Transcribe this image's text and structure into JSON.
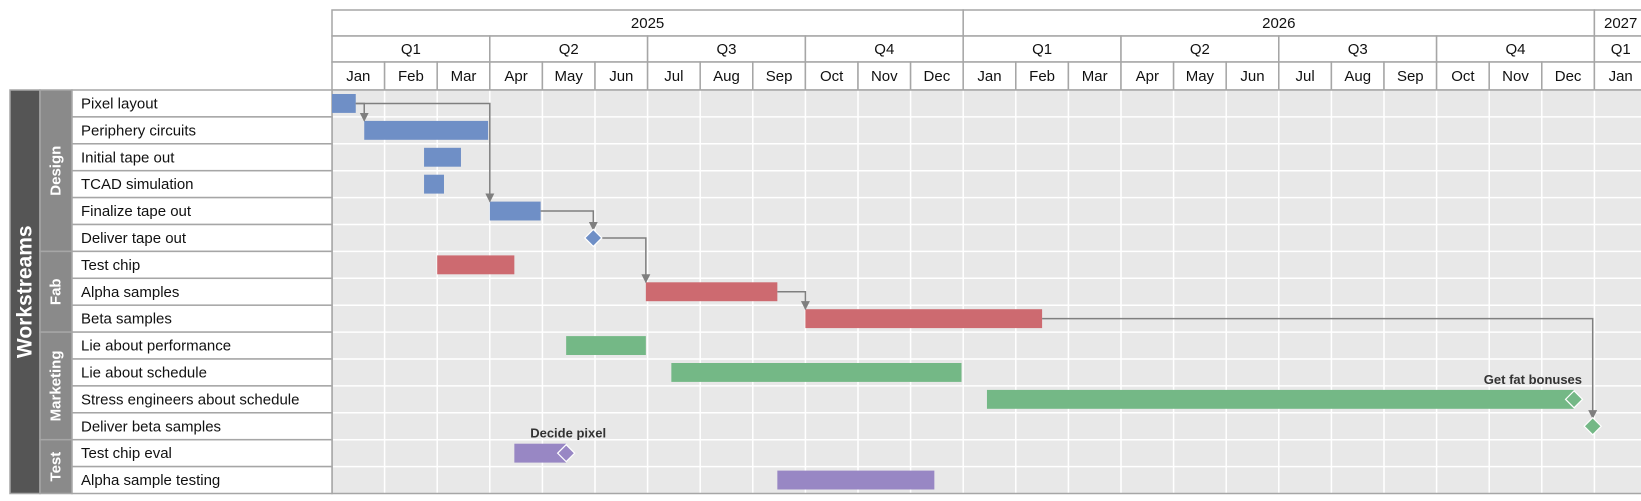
{
  "chart_data": {
    "type": "gantt",
    "row_header": "Workstreams",
    "timeline": {
      "years": [
        "2025",
        "2026",
        "2027"
      ],
      "quarters": [
        "Q1",
        "Q2",
        "Q3",
        "Q4",
        "Q1",
        "Q2",
        "Q3",
        "Q4",
        "Q1"
      ],
      "months": [
        "Jan",
        "Feb",
        "Mar",
        "Apr",
        "May",
        "Jun",
        "Jul",
        "Aug",
        "Sep",
        "Oct",
        "Nov",
        "Dec",
        "Jan",
        "Feb",
        "Mar",
        "Apr",
        "May",
        "Jun",
        "Jul",
        "Aug",
        "Sep",
        "Oct",
        "Nov",
        "Dec",
        "Jan"
      ]
    },
    "groups": [
      {
        "name": "Design",
        "rows": 6
      },
      {
        "name": "Fab",
        "rows": 3
      },
      {
        "name": "Marketing",
        "rows": 4
      },
      {
        "name": "Test",
        "rows": 2
      }
    ],
    "colors": {
      "Design": "#6f8fc6",
      "Fab": "#cd6a70",
      "Marketing": "#74b886",
      "Test": "#9887c4",
      "arrow": "#7f7f7f",
      "grid_bg": "#e8e8e8",
      "header_dark": "#555555",
      "header_mid": "#8a8a8a"
    },
    "tasks": [
      {
        "label": "Pixel layout",
        "group": "Design",
        "start": "2025-01-01",
        "end": "2025-01-15"
      },
      {
        "label": "Periphery circuits",
        "group": "Design",
        "start": "2025-01-20",
        "end": "2025-03-31"
      },
      {
        "label": "Initial tape out",
        "group": "Design",
        "start": "2025-02-22",
        "end": "2025-03-15"
      },
      {
        "label": "TCAD simulation",
        "group": "Design",
        "start": "2025-02-22",
        "end": "2025-03-05"
      },
      {
        "label": "Finalize tape out",
        "group": "Design",
        "start": "2025-04-01",
        "end": "2025-04-30"
      },
      {
        "label": "Deliver tape out",
        "group": "Design",
        "milestone": "2025-05-31"
      },
      {
        "label": "Test chip",
        "group": "Fab",
        "start": "2025-03-01",
        "end": "2025-04-15"
      },
      {
        "label": "Alpha samples",
        "group": "Fab",
        "start": "2025-06-30",
        "end": "2025-09-15"
      },
      {
        "label": "Beta samples",
        "group": "Fab",
        "start": "2025-10-01",
        "end": "2026-02-15"
      },
      {
        "label": "Lie about performance",
        "group": "Marketing",
        "start": "2025-05-15",
        "end": "2025-06-30"
      },
      {
        "label": "Lie about schedule",
        "group": "Marketing",
        "start": "2025-07-15",
        "end": "2025-12-31"
      },
      {
        "label": "Stress engineers about schedule",
        "group": "Marketing",
        "start": "2026-01-15",
        "end": "2026-12-20",
        "milestone": "2026-12-20",
        "milestone_label": "Get fat bonuses"
      },
      {
        "label": "Deliver beta samples",
        "group": "Marketing",
        "milestone": "2026-12-31"
      },
      {
        "label": "Test chip eval",
        "group": "Test",
        "start": "2025-04-15",
        "end": "2025-05-15",
        "milestone": "2025-05-15",
        "milestone_label": "Decide pixel"
      },
      {
        "label": "Alpha sample testing",
        "group": "Test",
        "start": "2025-09-15",
        "end": "2025-12-15"
      }
    ],
    "dependencies": [
      {
        "from": "Pixel layout",
        "to": "Periphery circuits"
      },
      {
        "from": "Pixel layout",
        "to": "Finalize tape out"
      },
      {
        "from": "Finalize tape out",
        "to": "Deliver tape out"
      },
      {
        "from": "Deliver tape out",
        "to": "Alpha samples"
      },
      {
        "from": "Alpha samples",
        "to": "Beta samples"
      },
      {
        "from": "Beta samples",
        "to": "Deliver beta samples"
      }
    ]
  }
}
